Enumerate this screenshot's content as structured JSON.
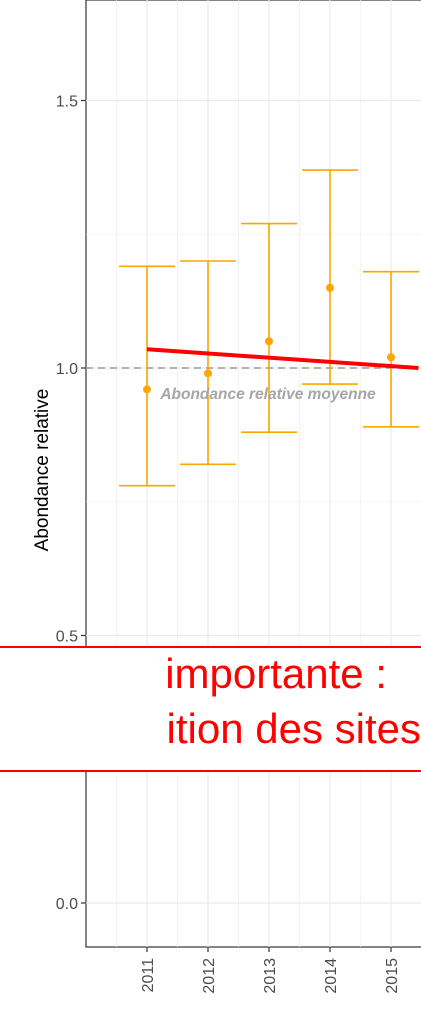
{
  "chart_data": {
    "type": "scatter",
    "title": "",
    "xlabel": "",
    "ylabel": "Abondance relative",
    "ylim": [
      -0.09,
      1.63
    ],
    "y_ticks": [
      0.0,
      0.5,
      1.0,
      1.5
    ],
    "y_tick_labels": [
      "0.0",
      "0.5",
      "1.0",
      "1.5"
    ],
    "x_ticks": [
      2011,
      2012,
      2013,
      2014,
      2015
    ],
    "x_tick_labels": [
      "2011",
      "2012",
      "2013",
      "2014",
      "2015"
    ],
    "grid": true,
    "series": [
      {
        "x": [
          2011,
          2012,
          2013,
          2014,
          2015
        ],
        "y": [
          0.96,
          0.99,
          1.05,
          1.15,
          1.02
        ],
        "lower": [
          0.78,
          0.82,
          0.88,
          0.97,
          0.89
        ],
        "upper": [
          1.19,
          1.2,
          1.27,
          1.37,
          1.18
        ],
        "color": "#FFA500"
      }
    ],
    "trend": {
      "x": [
        2011,
        2015.45
      ],
      "y": [
        1.035,
        1.0
      ],
      "color": "#FF0000"
    },
    "reference_line": {
      "y": 1.0,
      "label": "Abondance relative moyenne",
      "color": "#999999"
    }
  },
  "callout": {
    "line1": "importante :",
    "line2": "ition des sites",
    "color": "#FF0000"
  }
}
